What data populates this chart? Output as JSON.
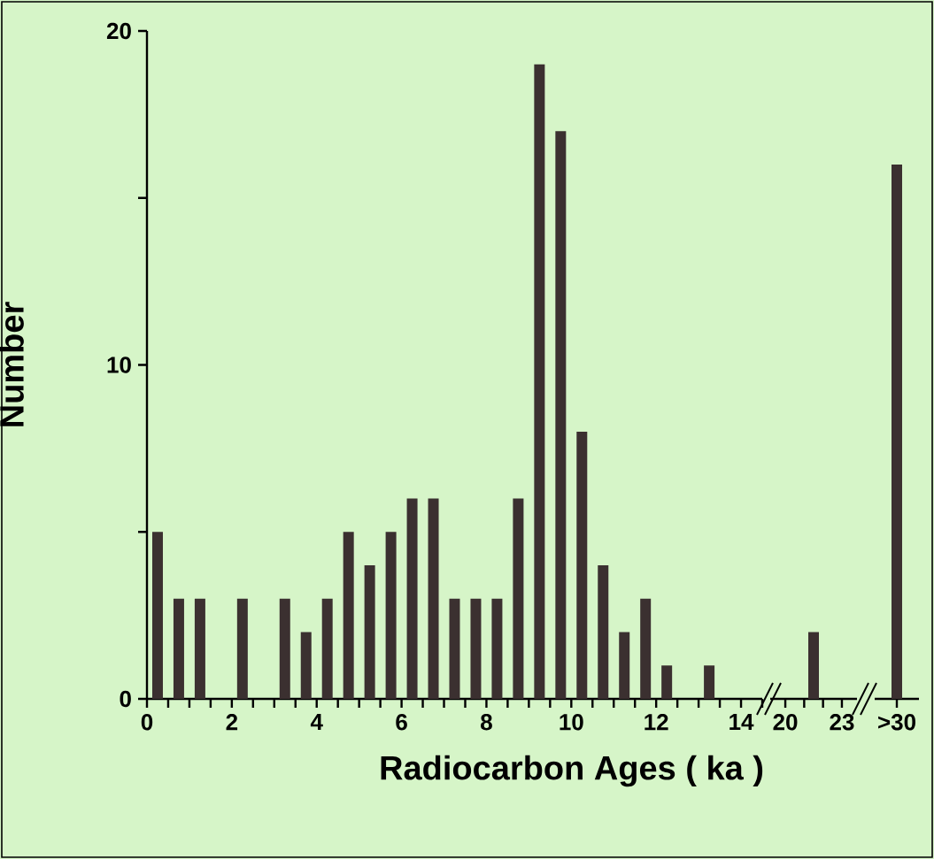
{
  "chart_data": [
    {
      "type": "bar",
      "xlabel": "Radiocarbon Ages ( ka )",
      "ylabel": "Number",
      "color": "#3b3030",
      "x": [
        0.25,
        0.75,
        1.25,
        2.25,
        3.25,
        3.75,
        4.25,
        4.75,
        5.25,
        5.75,
        6.25,
        6.75,
        7.25,
        7.75,
        8.25,
        8.75,
        9.25,
        9.75,
        10.25,
        10.75,
        11.25,
        11.75,
        12.25,
        13.25
      ],
      "values": [
        5,
        3,
        3,
        3,
        3,
        2,
        3,
        5,
        4,
        5,
        6,
        6,
        3,
        3,
        3,
        6,
        19,
        17,
        8,
        4,
        2,
        3,
        1,
        1
      ],
      "xlim": [
        0,
        14.5
      ],
      "xticks": [
        0,
        {
          "value": 0.5,
          "label": null
        },
        {
          "value": 1,
          "label": null
        },
        {
          "value": 1.5,
          "label": null
        },
        2,
        {
          "value": 2.5,
          "label": null
        },
        {
          "value": 3,
          "label": null
        },
        {
          "value": 3.5,
          "label": null
        },
        4,
        {
          "value": 4.5,
          "label": null
        },
        {
          "value": 5,
          "label": null
        },
        {
          "value": 5.5,
          "label": null
        },
        6,
        {
          "value": 6.5,
          "label": null
        },
        {
          "value": 7,
          "label": null
        },
        {
          "value": 7.5,
          "label": null
        },
        8,
        {
          "value": 8.5,
          "label": null
        },
        {
          "value": 9,
          "label": null
        },
        {
          "value": 9.5,
          "label": null
        },
        10,
        {
          "value": 10.5,
          "label": null
        },
        {
          "value": 11,
          "label": null
        },
        {
          "value": 11.5,
          "label": null
        },
        12,
        {
          "value": 12.5,
          "label": null
        },
        {
          "value": 13,
          "label": null
        },
        {
          "value": 13.5,
          "label": null
        },
        14,
        {
          "value": 14.5,
          "label": null
        }
      ],
      "ylim": [
        0,
        20
      ],
      "yticks": [
        0,
        {
          "value": 5,
          "label": null
        },
        10,
        {
          "value": 15,
          "label": null
        },
        20
      ]
    },
    {
      "type": "bar",
      "color": "#3b3030",
      "x": [
        21.5
      ],
      "values": [
        2
      ],
      "xlim": [
        19.2,
        23.8
      ],
      "xticks": [
        20,
        {
          "value": 21,
          "label": null
        },
        {
          "value": 22,
          "label": null
        },
        23
      ],
      "ylim": [
        0,
        20
      ],
      "tick_labels": "x"
    },
    {
      "type": "bar",
      "color": "#3b3030",
      "categories": [
        ">30"
      ],
      "values": [
        16
      ],
      "ylim": [
        0,
        20
      ],
      "tick_labels": "x"
    }
  ]
}
